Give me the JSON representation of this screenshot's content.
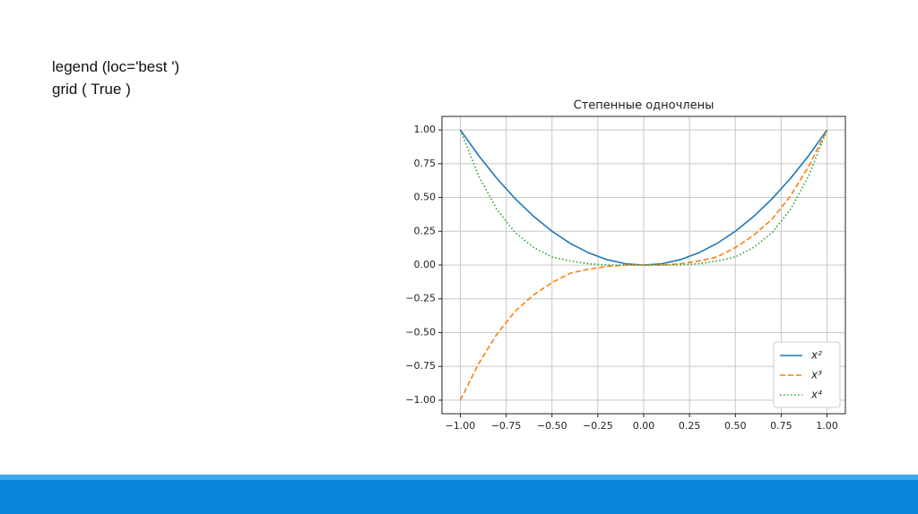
{
  "slide": {
    "lines": [
      "legend (loc='best ')",
      "grid ( True )"
    ]
  },
  "chart_data": {
    "type": "line",
    "title": "Степенные одночлены",
    "x": [
      -1,
      -0.9,
      -0.8,
      -0.7,
      -0.6,
      -0.5,
      -0.4,
      -0.3,
      -0.2,
      -0.1,
      0,
      0.1,
      0.2,
      0.3,
      0.4,
      0.5,
      0.6,
      0.7,
      0.8,
      0.9,
      1
    ],
    "series": [
      {
        "name": "x²",
        "color": "#1f77b4",
        "dash": "solid",
        "values": [
          1,
          0.81,
          0.64,
          0.49,
          0.36,
          0.25,
          0.16,
          0.09,
          0.04,
          0.01,
          0,
          0.01,
          0.04,
          0.09,
          0.16,
          0.25,
          0.36,
          0.49,
          0.64,
          0.81,
          1
        ]
      },
      {
        "name": "x³",
        "color": "#ff7f0e",
        "dash": "dashed",
        "values": [
          -1,
          -0.73,
          -0.51,
          -0.34,
          -0.22,
          -0.13,
          -0.06,
          -0.03,
          -0.01,
          0,
          0,
          0,
          0.01,
          0.03,
          0.06,
          0.13,
          0.22,
          0.34,
          0.51,
          0.73,
          1
        ]
      },
      {
        "name": "x⁴",
        "color": "#2ca02c",
        "dash": "dotted",
        "values": [
          1,
          0.66,
          0.41,
          0.24,
          0.13,
          0.06,
          0.03,
          0.01,
          0,
          0,
          0,
          0,
          0,
          0.01,
          0.03,
          0.06,
          0.13,
          0.24,
          0.41,
          0.66,
          1
        ]
      }
    ],
    "xlim": [
      -1.1,
      1.1
    ],
    "ylim": [
      -1.1,
      1.1
    ],
    "xticks": [
      {
        "value": -1,
        "label": "−1.00"
      },
      {
        "value": -0.75,
        "label": "−0.75"
      },
      {
        "value": -0.5,
        "label": "−0.50"
      },
      {
        "value": -0.25,
        "label": "−0.25"
      },
      {
        "value": 0,
        "label": "0.00"
      },
      {
        "value": 0.25,
        "label": "0.25"
      },
      {
        "value": 0.5,
        "label": "0.50"
      },
      {
        "value": 0.75,
        "label": "0.75"
      },
      {
        "value": 1,
        "label": "1.00"
      }
    ],
    "yticks": [
      {
        "value": -1,
        "label": "−1.00"
      },
      {
        "value": -0.75,
        "label": "−0.75"
      },
      {
        "value": -0.5,
        "label": "−0.50"
      },
      {
        "value": -0.25,
        "label": "−0.25"
      },
      {
        "value": 0,
        "label": "0.00"
      },
      {
        "value": 0.25,
        "label": "0.25"
      },
      {
        "value": 0.5,
        "label": "0.50"
      },
      {
        "value": 0.75,
        "label": "0.75"
      },
      {
        "value": 1,
        "label": "1.00"
      }
    ],
    "grid": true,
    "legend": "lower right"
  }
}
